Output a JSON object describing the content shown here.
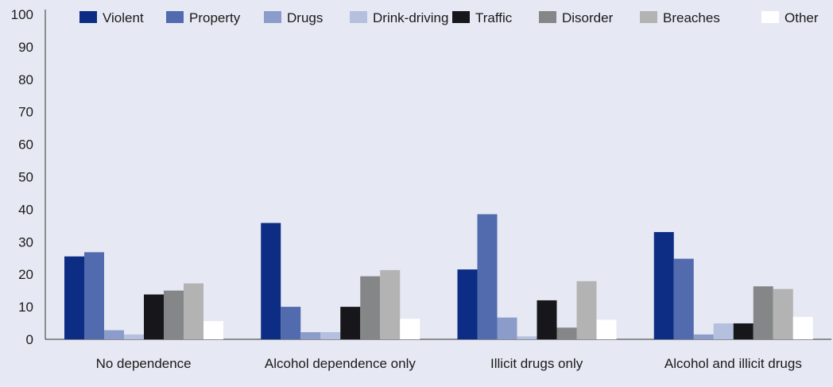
{
  "chart_data": {
    "type": "bar",
    "categories": [
      "No dependence",
      "Alcohol dependence only",
      "Illicit drugs only",
      "Alcohol and illicit drugs"
    ],
    "series": [
      {
        "name": "Violent",
        "color": "#0c2d83",
        "values": [
          25.5,
          35.8,
          21.5,
          33.0
        ]
      },
      {
        "name": "Property",
        "color": "#526aae",
        "values": [
          26.8,
          10.0,
          38.5,
          24.8
        ]
      },
      {
        "name": "Drugs",
        "color": "#8b9ccb",
        "values": [
          2.8,
          2.2,
          6.7,
          1.5
        ]
      },
      {
        "name": "Drink-driving",
        "color": "#b4c0de",
        "values": [
          1.5,
          2.2,
          0.9,
          4.9
        ]
      },
      {
        "name": "Traffic",
        "color": "#16161b",
        "values": [
          13.8,
          10.0,
          12.0,
          4.9
        ]
      },
      {
        "name": "Disorder",
        "color": "#858688",
        "values": [
          15.0,
          19.4,
          3.6,
          16.3
        ]
      },
      {
        "name": "Breaches",
        "color": "#b3b3b3",
        "values": [
          17.2,
          21.3,
          17.9,
          15.5
        ]
      },
      {
        "name": "Other",
        "color": "#ffffff",
        "values": [
          5.6,
          6.3,
          6.0,
          6.9
        ]
      }
    ],
    "ylim": [
      0,
      100
    ],
    "yticks": [
      "0",
      "10",
      "20",
      "30",
      "40",
      "50",
      "60",
      "70",
      "80",
      "90",
      "100"
    ],
    "legend": "top",
    "grid": false
  }
}
